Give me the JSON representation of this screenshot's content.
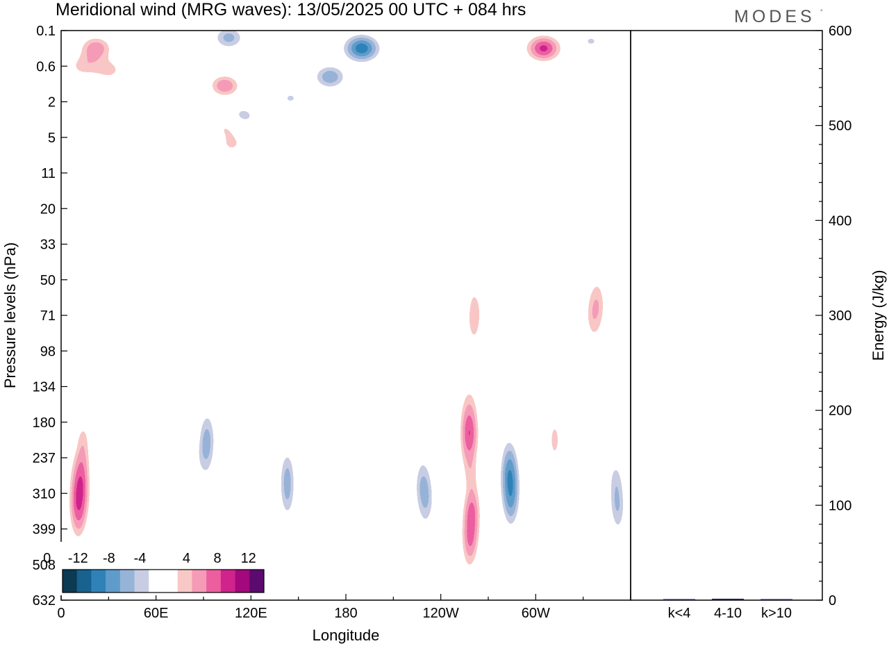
{
  "title": "Meridional wind (MRG waves):  13/05/2025  00 UTC  + 084 hrs",
  "logo": "MODES",
  "colors": {
    "neg": [
      "#0b3a52",
      "#17628f",
      "#2f82b8",
      "#5f9ccb",
      "#97b3d8",
      "#c9cde4"
    ],
    "pos": [
      "#f8c8c6",
      "#f59bb8",
      "#ec5f9f",
      "#d0238c",
      "#a3087d",
      "#5c0a6e"
    ],
    "energy_bar": "#1a1f5a"
  },
  "chart_data": [
    {
      "type": "heatmap",
      "title": "Meridional wind (MRG waves):  13/05/2025  00 UTC  + 084 hrs",
      "xlabel": "Longitude",
      "ylabel": "Pressure levels (hPa)",
      "x_ticks": [
        "0",
        "60E",
        "120E",
        "180",
        "120W",
        "60W"
      ],
      "x_range": [
        0,
        360
      ],
      "y_ticks": [
        "0.1",
        "0.6",
        "2",
        "5",
        "11",
        "20",
        "33",
        "50",
        "71",
        "98",
        "134",
        "180",
        "237",
        "310",
        "399",
        "508",
        "632"
      ],
      "colorbar": {
        "labels": [
          "-12",
          "-8",
          "-4",
          "0",
          "4",
          "8",
          "12"
        ],
        "levels": [
          -14,
          -12,
          -10,
          -8,
          -6,
          -4,
          -2,
          2,
          4,
          6,
          8,
          10,
          12,
          14
        ]
      },
      "features": [
        {
          "lon": 22,
          "level": 0.5,
          "value": 9
        },
        {
          "lon": 14,
          "level": 1.0,
          "value": 6
        },
        {
          "lon": 30,
          "level": 1.1,
          "value": 6
        },
        {
          "lon": 82,
          "level": 0.3,
          "value": 2
        },
        {
          "lon": 106,
          "level": 0.2,
          "value": -8
        },
        {
          "lon": 104,
          "level": 1.6,
          "value": 5
        },
        {
          "lon": 72,
          "level": 1.7,
          "value": -4
        },
        {
          "lon": 105,
          "level": 2.7,
          "value": 5
        },
        {
          "lon": 108,
          "level": 3.2,
          "value": 5
        },
        {
          "lon": 103,
          "level": 1.5,
          "value": 5
        },
        {
          "lon": 190,
          "level": 0.5,
          "value": -13
        },
        {
          "lon": 170,
          "level": 1.3,
          "value": -9
        },
        {
          "lon": 145,
          "level": 1.9,
          "value": -5
        },
        {
          "lon": 220,
          "level": 0.5,
          "value": 4
        },
        {
          "lon": 305,
          "level": 0.5,
          "value": 12
        },
        {
          "lon": 335,
          "level": 0.3,
          "value": -5
        },
        {
          "lon": 60,
          "level": 2.5,
          "value": 3
        },
        {
          "lon": 115,
          "level": 2.4,
          "value": -6
        },
        {
          "lon": 130,
          "level": 2.9,
          "value": 3
        },
        {
          "lon": 155,
          "level": 3.0,
          "value": -4
        },
        {
          "lon": 225,
          "level": 2.5,
          "value": -2
        },
        {
          "lon": 280,
          "level": 2.5,
          "value": 2
        },
        {
          "lon": 315,
          "level": 2.5,
          "value": 3
        },
        {
          "lon": 345,
          "level": 3.1,
          "value": 2
        },
        {
          "lon": 210,
          "level": 4.1,
          "value": -2
        },
        {
          "lon": 150,
          "level": 4.0,
          "value": 2
        },
        {
          "lon": 300,
          "level": 4.0,
          "value": 2
        },
        {
          "lon": 100,
          "level": 4.2,
          "value": -2
        },
        {
          "lon": 335,
          "level": 5.7,
          "value": 2
        },
        {
          "lon": 30,
          "level": 7.3,
          "value": 3
        },
        {
          "lon": 55,
          "level": 7.8,
          "value": 2
        },
        {
          "lon": 25,
          "level": 8.2,
          "value": 3
        },
        {
          "lon": 155,
          "level": 8.2,
          "value": -2
        },
        {
          "lon": 190,
          "level": 9.0,
          "value": 2
        },
        {
          "lon": 230,
          "level": 8.6,
          "value": -3
        },
        {
          "lon": 260,
          "level": 8.2,
          "value": 3
        },
        {
          "lon": 262,
          "level": 7.9,
          "value": 5
        },
        {
          "lon": 300,
          "level": 8.8,
          "value": -5
        },
        {
          "lon": 335,
          "level": 8.0,
          "value": 5
        },
        {
          "lon": 340,
          "level": 7.7,
          "value": 6
        },
        {
          "lon": 256,
          "level": 6.6,
          "value": 2
        },
        {
          "lon": 14,
          "level": 11.5,
          "value": 5
        },
        {
          "lon": 13,
          "level": 12.8,
          "value": 10
        },
        {
          "lon": 10,
          "level": 13.3,
          "value": 9
        },
        {
          "lon": 32,
          "level": 12.9,
          "value": -4
        },
        {
          "lon": 55,
          "level": 13.5,
          "value": 4
        },
        {
          "lon": 83,
          "level": 12.5,
          "value": -2
        },
        {
          "lon": 90,
          "level": 11.8,
          "value": -4
        },
        {
          "lon": 93,
          "level": 11.5,
          "value": -7
        },
        {
          "lon": 115,
          "level": 12.5,
          "value": 5
        },
        {
          "lon": 143,
          "level": 12.5,
          "value": -6
        },
        {
          "lon": 143,
          "level": 13.0,
          "value": -5
        },
        {
          "lon": 165,
          "level": 13.0,
          "value": 3
        },
        {
          "lon": 180,
          "level": 14.5,
          "value": 2
        },
        {
          "lon": 187,
          "level": 15.5,
          "value": 4
        },
        {
          "lon": 205,
          "level": 12.5,
          "value": 4
        },
        {
          "lon": 228,
          "level": 12.8,
          "value": -7
        },
        {
          "lon": 232,
          "level": 13.2,
          "value": -5
        },
        {
          "lon": 258,
          "level": 11.3,
          "value": 12
        },
        {
          "lon": 260,
          "level": 13.5,
          "value": 9
        },
        {
          "lon": 258,
          "level": 14.3,
          "value": 8
        },
        {
          "lon": 283,
          "level": 12.5,
          "value": -10
        },
        {
          "lon": 285,
          "level": 13.0,
          "value": -8
        },
        {
          "lon": 312,
          "level": 11.5,
          "value": 6
        },
        {
          "lon": 310,
          "level": 13.5,
          "value": 4
        },
        {
          "lon": 340,
          "level": 10.8,
          "value": -4
        },
        {
          "lon": 350,
          "level": 12.6,
          "value": -4
        },
        {
          "lon": 352,
          "level": 13.4,
          "value": -7
        },
        {
          "lon": 360,
          "level": 11.5,
          "value": 3
        },
        {
          "lon": 0,
          "level": 11.5,
          "value": 5
        },
        {
          "lon": 20,
          "level": 10.3,
          "value": 2
        }
      ]
    },
    {
      "type": "bar",
      "ylabel": "Energy (J/kg)",
      "ylim": [
        0,
        600
      ],
      "y_ticks": [
        "0",
        "100",
        "200",
        "300",
        "400",
        "500",
        "600"
      ],
      "categories": [
        "k<4",
        "4-10",
        "k>10"
      ],
      "values": [
        0.2,
        1.5,
        0.1
      ]
    }
  ]
}
